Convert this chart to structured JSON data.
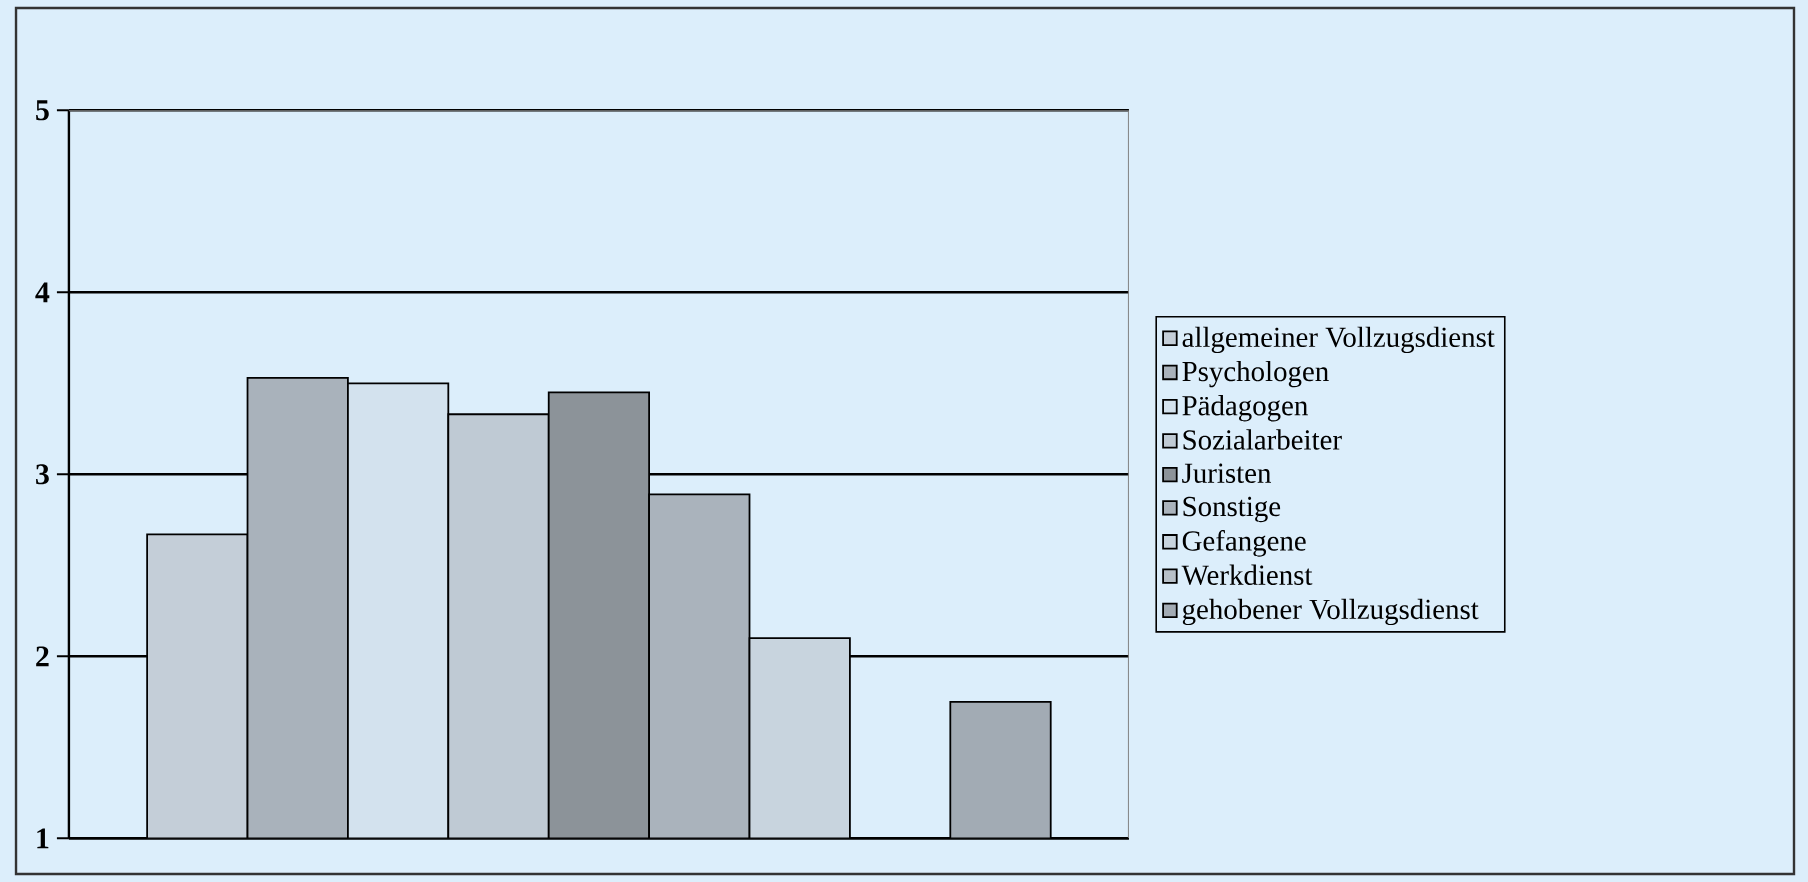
{
  "chart_data": {
    "type": "bar",
    "categories": [
      null
    ],
    "series": [
      {
        "name": "allgemeiner Vollzugsdienst",
        "color": "#c4ced8",
        "values": [
          2.67
        ]
      },
      {
        "name": "Psychologen",
        "color": "#a9b2bb",
        "values": [
          3.53
        ]
      },
      {
        "name": "Pädagogen",
        "color": "#d3e2ee",
        "values": [
          3.5
        ]
      },
      {
        "name": "Sozialarbeiter",
        "color": "#bfcad4",
        "values": [
          3.33
        ]
      },
      {
        "name": "Juristen",
        "color": "#8c9399",
        "values": [
          3.45
        ]
      },
      {
        "name": "Sonstige",
        "color": "#aab3bc",
        "values": [
          2.89
        ]
      },
      {
        "name": "Gefangene",
        "color": "#c8d4de",
        "values": [
          2.1
        ]
      },
      {
        "name": "Werkdienst",
        "color": "#b7c0c8",
        "values": [
          null
        ]
      },
      {
        "name": "gehobener Vollzugsdienst",
        "color": "#a2abb4",
        "values": [
          1.75
        ]
      }
    ],
    "ylim": [
      1,
      5
    ],
    "yticks": [
      1,
      2,
      3,
      4,
      5
    ],
    "grid": "y",
    "legend": "right"
  }
}
